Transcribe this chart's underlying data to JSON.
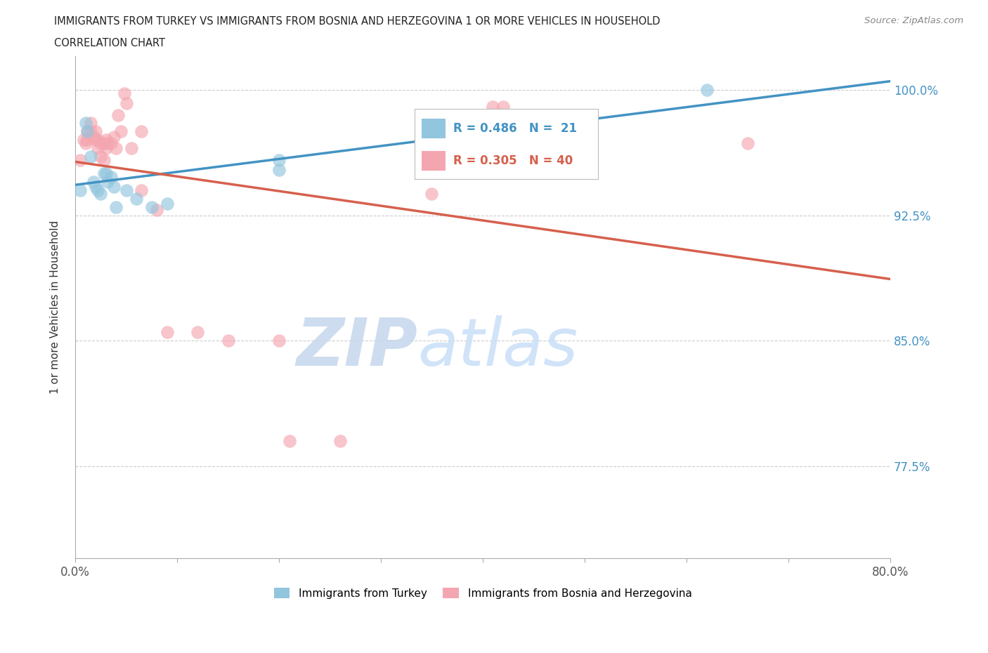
{
  "title_line1": "IMMIGRANTS FROM TURKEY VS IMMIGRANTS FROM BOSNIA AND HERZEGOVINA 1 OR MORE VEHICLES IN HOUSEHOLD",
  "title_line2": "CORRELATION CHART",
  "source_text": "Source: ZipAtlas.com",
  "ylabel": "1 or more Vehicles in Household",
  "xlim": [
    0.0,
    0.8
  ],
  "ylim": [
    0.72,
    1.02
  ],
  "ytick_values": [
    1.0,
    0.925,
    0.85,
    0.775
  ],
  "xtick_values": [
    0.0,
    0.1,
    0.2,
    0.3,
    0.4,
    0.5,
    0.6,
    0.7,
    0.8
  ],
  "turkey_color": "#92c5de",
  "turkey_color_line": "#4393c3",
  "bosnia_color": "#f4a6b0",
  "bosnia_color_line": "#d6604d",
  "turkey_R": 0.486,
  "turkey_N": 21,
  "bosnia_R": 0.305,
  "bosnia_N": 40,
  "watermark_zip_color": "#c8d8f0",
  "watermark_atlas_color": "#c8dff5",
  "turkey_x": [
    0.005,
    0.01,
    0.012,
    0.015,
    0.018,
    0.02,
    0.022,
    0.025,
    0.028,
    0.03,
    0.032,
    0.035,
    0.038,
    0.04,
    0.05,
    0.06,
    0.075,
    0.09,
    0.2,
    0.2,
    0.62
  ],
  "turkey_y": [
    0.94,
    0.98,
    0.975,
    0.96,
    0.945,
    0.942,
    0.94,
    0.938,
    0.95,
    0.95,
    0.945,
    0.948,
    0.942,
    0.93,
    0.94,
    0.935,
    0.93,
    0.932,
    0.952,
    0.958,
    1.0
  ],
  "bosnia_x": [
    0.005,
    0.008,
    0.01,
    0.012,
    0.012,
    0.015,
    0.015,
    0.018,
    0.02,
    0.02,
    0.022,
    0.022,
    0.025,
    0.025,
    0.028,
    0.028,
    0.03,
    0.03,
    0.032,
    0.035,
    0.038,
    0.04,
    0.042,
    0.045,
    0.048,
    0.05,
    0.055,
    0.065,
    0.065,
    0.08,
    0.09,
    0.12,
    0.15,
    0.2,
    0.21,
    0.26,
    0.35,
    0.41,
    0.42,
    0.66
  ],
  "bosnia_y": [
    0.958,
    0.97,
    0.968,
    0.975,
    0.97,
    0.98,
    0.975,
    0.972,
    0.975,
    0.97,
    0.965,
    0.97,
    0.968,
    0.96,
    0.968,
    0.958,
    0.97,
    0.965,
    0.968,
    0.968,
    0.972,
    0.965,
    0.985,
    0.975,
    0.998,
    0.992,
    0.965,
    0.975,
    0.94,
    0.928,
    0.855,
    0.855,
    0.85,
    0.85,
    0.79,
    0.79,
    0.938,
    0.99,
    0.99,
    0.968
  ],
  "legend_turkey_text": "R = 0.486   N =  21",
  "legend_bosnia_text": "R = 0.305   N = 40",
  "bottom_legend_turkey": "Immigrants from Turkey",
  "bottom_legend_bosnia": "Immigrants from Bosnia and Herzegovina"
}
